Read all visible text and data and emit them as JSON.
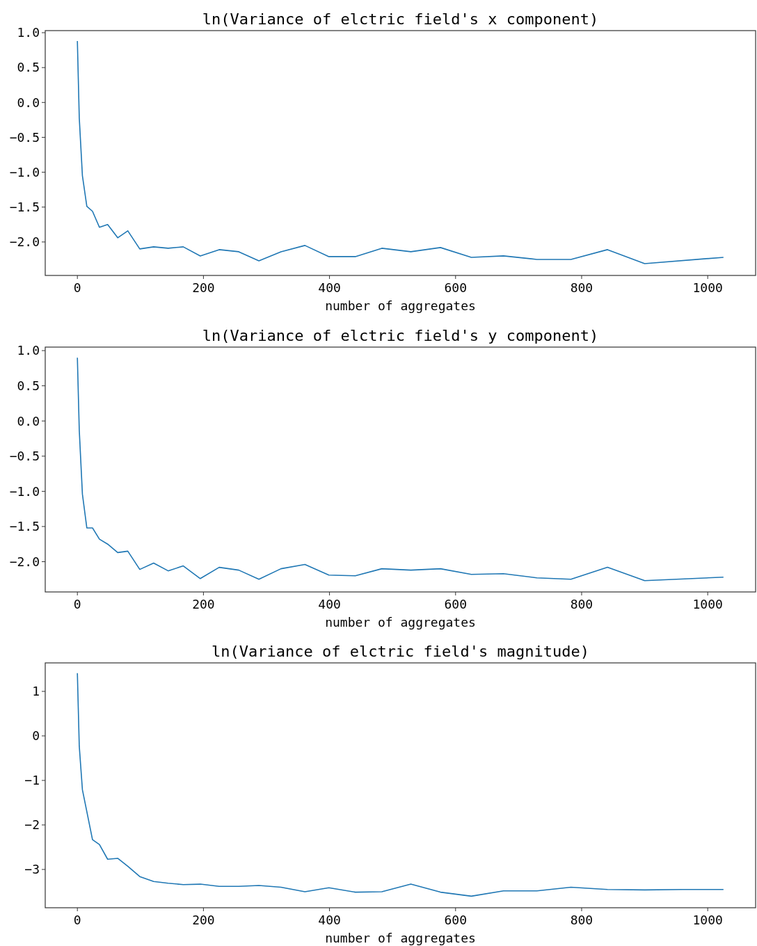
{
  "chart_data": [
    {
      "type": "line",
      "title": "ln(Variance of elctric field's x component)",
      "xlabel": "number of aggregates",
      "xlim": [
        -51,
        1076
      ],
      "xticks": [
        0,
        200,
        400,
        600,
        800,
        1000
      ],
      "ylim": [
        -2.48,
        1.03
      ],
      "yticks": [
        {
          "value": 1,
          "label": "1.0"
        },
        {
          "value": 0.5,
          "label": "0.5"
        },
        {
          "value": 0,
          "label": "0.0"
        },
        {
          "value": -0.5,
          "label": "−0.5"
        },
        {
          "value": -1,
          "label": "−1.0"
        },
        {
          "value": -1.5,
          "label": "−1.5"
        },
        {
          "value": -2,
          "label": "−2.0"
        }
      ],
      "series": [
        {
          "color": "#1f77b4",
          "x": [
            0,
            3,
            8,
            15,
            24,
            35,
            48,
            64,
            80,
            99,
            121,
            144,
            168,
            195,
            225,
            256,
            288,
            323,
            361,
            399,
            441,
            483,
            529,
            576,
            625,
            676,
            729,
            783,
            841,
            900,
            1025
          ],
          "values": [
            0.88,
            -0.22,
            -1.05,
            -1.49,
            -1.56,
            -1.79,
            -1.75,
            -1.94,
            -1.84,
            -2.1,
            -2.07,
            -2.09,
            -2.07,
            -2.2,
            -2.11,
            -2.14,
            -2.27,
            -2.14,
            -2.05,
            -2.21,
            -2.21,
            -2.09,
            -2.14,
            -2.08,
            -2.22,
            -2.2,
            -2.25,
            -2.25,
            -2.11,
            -2.31,
            -2.22
          ]
        }
      ]
    },
    {
      "type": "line",
      "title": "ln(Variance of elctric field's y component)",
      "xlabel": "number of aggregates",
      "xlim": [
        -51,
        1076
      ],
      "xticks": [
        0,
        200,
        400,
        600,
        800,
        1000
      ],
      "ylim": [
        -2.43,
        1.05
      ],
      "yticks": [
        {
          "value": 1,
          "label": "1.0"
        },
        {
          "value": 0.5,
          "label": "0.5"
        },
        {
          "value": 0,
          "label": "0.0"
        },
        {
          "value": -0.5,
          "label": "−0.5"
        },
        {
          "value": -1,
          "label": "−1.0"
        },
        {
          "value": -1.5,
          "label": "−1.5"
        },
        {
          "value": -2,
          "label": "−2.0"
        }
      ],
      "series": [
        {
          "color": "#1f77b4",
          "x": [
            0,
            3,
            8,
            15,
            24,
            35,
            48,
            64,
            80,
            99,
            121,
            144,
            168,
            195,
            225,
            256,
            288,
            323,
            361,
            399,
            441,
            483,
            529,
            576,
            625,
            676,
            729,
            783,
            841,
            900,
            1025
          ],
          "values": [
            0.9,
            -0.13,
            -1.04,
            -1.52,
            -1.52,
            -1.68,
            -1.75,
            -1.87,
            -1.85,
            -2.11,
            -2.02,
            -2.13,
            -2.06,
            -2.24,
            -2.08,
            -2.12,
            -2.25,
            -2.1,
            -2.04,
            -2.19,
            -2.2,
            -2.1,
            -2.12,
            -2.1,
            -2.18,
            -2.17,
            -2.23,
            -2.25,
            -2.08,
            -2.27,
            -2.22
          ]
        }
      ]
    },
    {
      "type": "line",
      "title": "ln(Variance of elctric field's magnitude)",
      "xlabel": "number of aggregates",
      "xlim": [
        -51,
        1076
      ],
      "xticks": [
        0,
        200,
        400,
        600,
        800,
        1000
      ],
      "ylim": [
        -3.86,
        1.64
      ],
      "yticks": [
        {
          "value": 1,
          "label": "1"
        },
        {
          "value": 0,
          "label": "0"
        },
        {
          "value": -1,
          "label": "−1"
        },
        {
          "value": -2,
          "label": "−2"
        },
        {
          "value": -3,
          "label": "−3"
        }
      ],
      "series": [
        {
          "color": "#1f77b4",
          "x": [
            0,
            3,
            8,
            24,
            35,
            48,
            64,
            80,
            99,
            121,
            144,
            168,
            195,
            225,
            256,
            288,
            323,
            361,
            399,
            441,
            483,
            529,
            576,
            625,
            676,
            729,
            783,
            841,
            900,
            960,
            1025
          ],
          "values": [
            1.41,
            -0.23,
            -1.21,
            -2.33,
            -2.44,
            -2.77,
            -2.75,
            -2.93,
            -3.16,
            -3.27,
            -3.31,
            -3.34,
            -3.33,
            -3.38,
            -3.38,
            -3.36,
            -3.4,
            -3.5,
            -3.41,
            -3.51,
            -3.5,
            -3.33,
            -3.51,
            -3.6,
            -3.48,
            -3.48,
            -3.4,
            -3.45,
            -3.46,
            -3.45,
            -3.45
          ]
        }
      ]
    }
  ]
}
